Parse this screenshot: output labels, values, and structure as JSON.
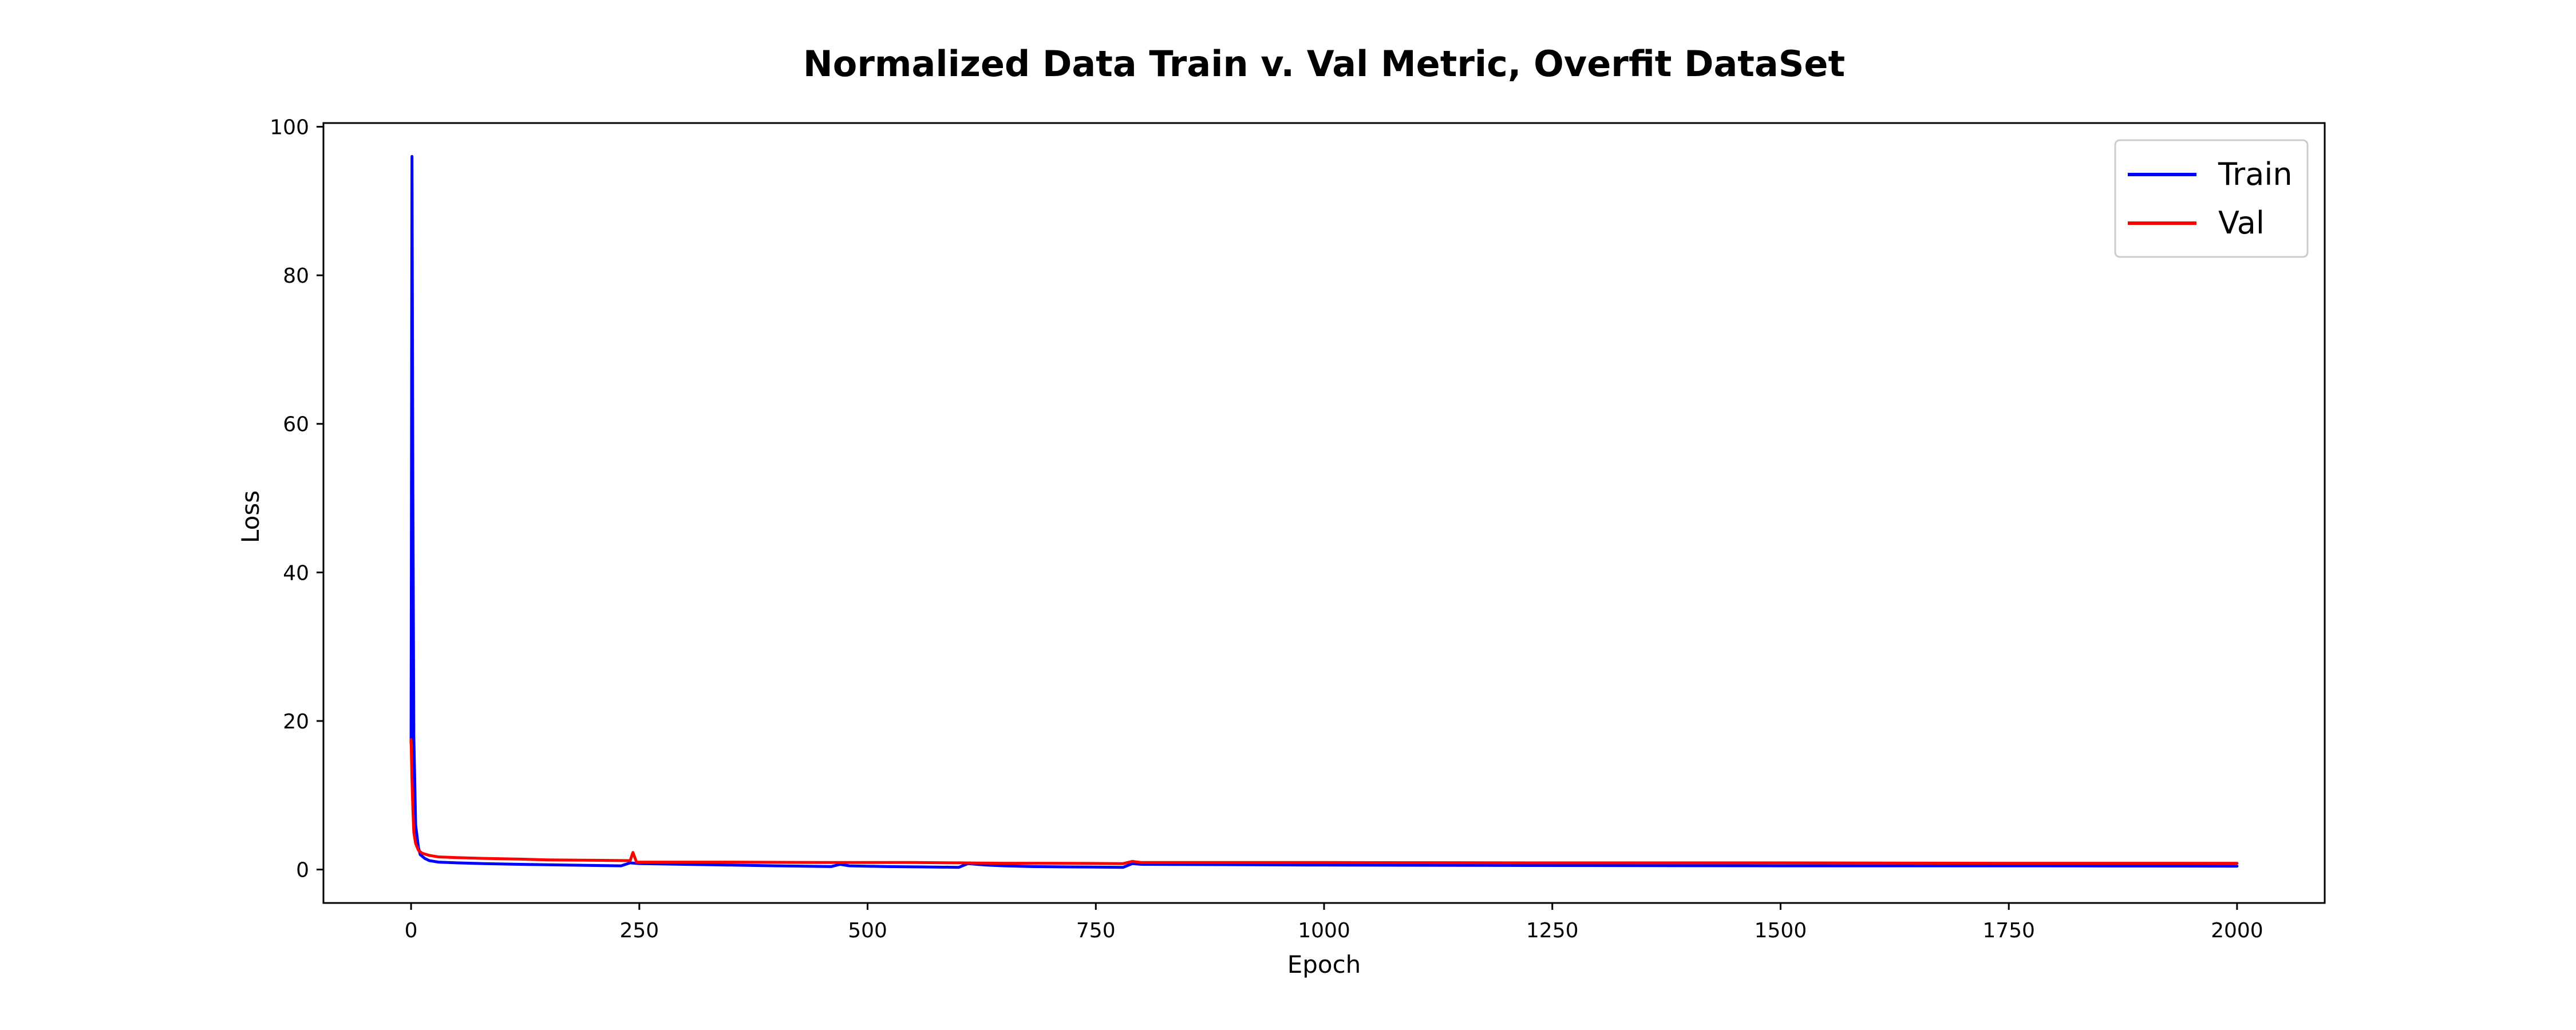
{
  "chart_data": {
    "type": "line",
    "title": "Normalized Data Train v. Val Metric, Overfit DataSet",
    "xlabel": "Epoch",
    "ylabel": "Loss",
    "xlim": [
      -96,
      2096
    ],
    "ylim": [
      -4.5,
      100.5
    ],
    "xticks": [
      0,
      250,
      500,
      750,
      1000,
      1250,
      1500,
      1750,
      2000
    ],
    "yticks": [
      0,
      20,
      40,
      60,
      80,
      100
    ],
    "grid": false,
    "legend_position": "top-right",
    "series": [
      {
        "name": "Train",
        "color": "#0000ff",
        "points": [
          [
            0,
            17
          ],
          [
            1,
            96
          ],
          [
            2,
            50
          ],
          [
            3,
            18
          ],
          [
            5,
            6
          ],
          [
            8,
            3
          ],
          [
            10,
            2
          ],
          [
            15,
            1.5
          ],
          [
            20,
            1.2
          ],
          [
            30,
            1.0
          ],
          [
            50,
            0.9
          ],
          [
            80,
            0.8
          ],
          [
            120,
            0.7
          ],
          [
            170,
            0.6
          ],
          [
            230,
            0.5
          ],
          [
            240,
            0.9
          ],
          [
            250,
            0.8
          ],
          [
            300,
            0.7
          ],
          [
            350,
            0.6
          ],
          [
            400,
            0.5
          ],
          [
            460,
            0.4
          ],
          [
            470,
            0.7
          ],
          [
            480,
            0.5
          ],
          [
            520,
            0.4
          ],
          [
            560,
            0.35
          ],
          [
            600,
            0.3
          ],
          [
            610,
            0.8
          ],
          [
            630,
            0.6
          ],
          [
            650,
            0.5
          ],
          [
            680,
            0.4
          ],
          [
            720,
            0.35
          ],
          [
            780,
            0.3
          ],
          [
            790,
            0.8
          ],
          [
            800,
            0.7
          ],
          [
            1000,
            0.6
          ],
          [
            1200,
            0.55
          ],
          [
            1500,
            0.5
          ],
          [
            1750,
            0.5
          ],
          [
            2000,
            0.45
          ]
        ]
      },
      {
        "name": "Val",
        "color": "#ff0000",
        "points": [
          [
            0,
            17.5
          ],
          [
            1,
            12
          ],
          [
            2,
            8
          ],
          [
            3,
            5
          ],
          [
            5,
            3.5
          ],
          [
            8,
            2.6
          ],
          [
            12,
            2.2
          ],
          [
            20,
            1.9
          ],
          [
            30,
            1.7
          ],
          [
            50,
            1.6
          ],
          [
            80,
            1.5
          ],
          [
            120,
            1.4
          ],
          [
            150,
            1.3
          ],
          [
            200,
            1.25
          ],
          [
            240,
            1.2
          ],
          [
            243,
            2.3
          ],
          [
            247,
            1.0
          ],
          [
            270,
            1.0
          ],
          [
            350,
            1.0
          ],
          [
            450,
            0.95
          ],
          [
            550,
            0.95
          ],
          [
            600,
            0.9
          ],
          [
            650,
            0.85
          ],
          [
            700,
            0.85
          ],
          [
            780,
            0.8
          ],
          [
            790,
            1.1
          ],
          [
            800,
            0.95
          ],
          [
            1000,
            0.95
          ],
          [
            1250,
            0.9
          ],
          [
            1500,
            0.9
          ],
          [
            1750,
            0.85
          ],
          [
            2000,
            0.85
          ]
        ]
      }
    ]
  }
}
